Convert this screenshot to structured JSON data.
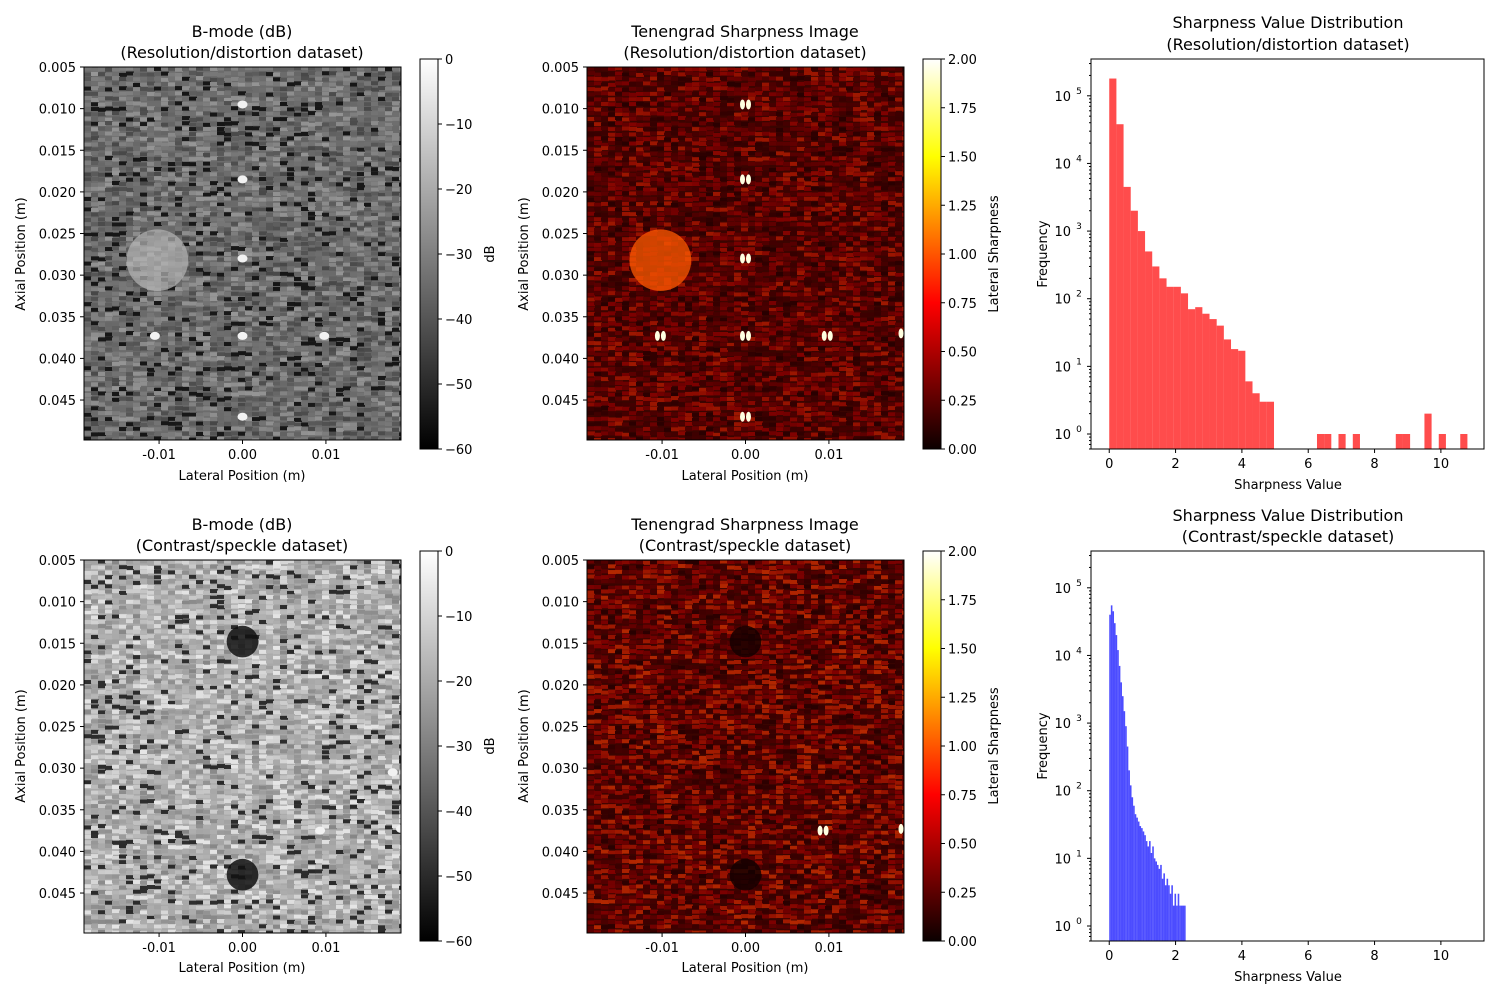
{
  "chart_data": [
    {
      "type": "heatmap",
      "title": "B-mode (dB)",
      "subtitle": "(Resolution/distortion dataset)",
      "xlabel": "Lateral Position (m)",
      "ylabel": "Axial Position (m)",
      "xlim": [
        -0.019,
        0.019
      ],
      "ylim": [
        0.005,
        0.0498
      ],
      "xticks": [
        "-0.01",
        "0.00",
        "0.01"
      ],
      "yticks": [
        "0.005",
        "0.010",
        "0.015",
        "0.020",
        "0.025",
        "0.030",
        "0.035",
        "0.040",
        "0.045"
      ],
      "colormap": "gray",
      "colorbar": {
        "label": "dB",
        "range": [
          -60,
          0
        ],
        "ticks": [
          "0",
          "−10",
          "−20",
          "−30",
          "−40",
          "−50",
          "−60"
        ]
      },
      "point_targets": [
        [
          0.0,
          0.0095
        ],
        [
          0.0,
          0.0185
        ],
        [
          0.0,
          0.028
        ],
        [
          -0.0105,
          0.0373
        ],
        [
          0.0,
          0.0373
        ],
        [
          0.0098,
          0.0373
        ],
        [
          0.0,
          0.047
        ]
      ],
      "inclusions": [
        {
          "x": -0.0102,
          "y": 0.0282,
          "r": 0.0037,
          "kind": "bright"
        }
      ]
    },
    {
      "type": "heatmap",
      "title": "Tenengrad Sharpness Image",
      "subtitle": "(Resolution/distortion dataset)",
      "xlabel": "Lateral Position (m)",
      "ylabel": "Axial Position (m)",
      "xlim": [
        -0.019,
        0.019
      ],
      "ylim": [
        0.005,
        0.0498
      ],
      "xticks": [
        "-0.01",
        "0.00",
        "0.01"
      ],
      "yticks": [
        "0.005",
        "0.010",
        "0.015",
        "0.020",
        "0.025",
        "0.030",
        "0.035",
        "0.040",
        "0.045"
      ],
      "colormap": "hot",
      "colorbar": {
        "label": "Lateral Sharpness",
        "range": [
          0,
          2
        ],
        "ticks": [
          "0.00",
          "0.25",
          "0.50",
          "0.75",
          "1.00",
          "1.25",
          "1.50",
          "1.75",
          "2.00"
        ]
      },
      "point_targets": [
        [
          0.0,
          0.0095
        ],
        [
          0.0,
          0.0185
        ],
        [
          0.0,
          0.028
        ],
        [
          -0.0102,
          0.0373
        ],
        [
          0.0,
          0.0373
        ],
        [
          0.0098,
          0.0373
        ],
        [
          0.0,
          0.047
        ],
        [
          0.019,
          0.037
        ]
      ],
      "inclusions": [
        {
          "x": -0.0102,
          "y": 0.0282,
          "r": 0.0037,
          "kind": "bright"
        }
      ]
    },
    {
      "type": "bar",
      "title": "Sharpness Value Distribution",
      "subtitle": "(Resolution/distortion dataset)",
      "xlabel": "Sharpness Value",
      "ylabel": "Frequency",
      "yscale": "log",
      "xlim": [
        -0.55,
        11.3
      ],
      "ylim": [
        0.6,
        350000
      ],
      "xticks": [
        0,
        2,
        4,
        6,
        8,
        10
      ],
      "color": "#ff0000",
      "bin_width": 0.216,
      "x": [
        0.0,
        0.216,
        0.432,
        0.648,
        0.864,
        1.08,
        1.296,
        1.512,
        1.728,
        1.944,
        2.16,
        2.376,
        2.592,
        2.808,
        3.024,
        3.24,
        3.456,
        3.672,
        3.888,
        4.104,
        4.32,
        4.536,
        4.752,
        6.264,
        6.48,
        6.912,
        7.344,
        8.64,
        8.856,
        9.504,
        9.936,
        10.584
      ],
      "values": [
        180000,
        38000,
        4500,
        2000,
        1000,
        500,
        300,
        200,
        150,
        150,
        120,
        70,
        75,
        60,
        50,
        40,
        25,
        18,
        17,
        6,
        4,
        3,
        3,
        1,
        1,
        1,
        1,
        1,
        1,
        2,
        1,
        1
      ]
    },
    {
      "type": "heatmap",
      "title": "B-mode (dB)",
      "subtitle": "(Contrast/speckle dataset)",
      "xlabel": "Lateral Position (m)",
      "ylabel": "Axial Position (m)",
      "xlim": [
        -0.019,
        0.019
      ],
      "ylim": [
        0.005,
        0.0498
      ],
      "xticks": [
        "-0.01",
        "0.00",
        "0.01"
      ],
      "yticks": [
        "0.005",
        "0.010",
        "0.015",
        "0.020",
        "0.025",
        "0.030",
        "0.035",
        "0.040",
        "0.045"
      ],
      "colormap": "gray",
      "colorbar": {
        "label": "dB",
        "range": [
          -60,
          0
        ],
        "ticks": [
          "0",
          "−10",
          "−20",
          "−30",
          "−40",
          "−50",
          "−60"
        ]
      },
      "point_targets": [
        [
          0.0093,
          0.0375
        ],
        [
          0.019,
          0.0373
        ],
        [
          0.018,
          0.0305
        ]
      ],
      "inclusions": [
        {
          "x": 0.0,
          "y": 0.0148,
          "r": 0.0019,
          "kind": "dark"
        },
        {
          "x": 0.0,
          "y": 0.0428,
          "r": 0.0019,
          "kind": "dark"
        }
      ]
    },
    {
      "type": "heatmap",
      "title": "Tenengrad Sharpness Image",
      "subtitle": "(Contrast/speckle dataset)",
      "xlabel": "Lateral Position (m)",
      "ylabel": "Axial Position (m)",
      "xlim": [
        -0.019,
        0.019
      ],
      "ylim": [
        0.005,
        0.0498
      ],
      "xticks": [
        "-0.01",
        "0.00",
        "0.01"
      ],
      "yticks": [
        "0.005",
        "0.010",
        "0.015",
        "0.020",
        "0.025",
        "0.030",
        "0.035",
        "0.040",
        "0.045"
      ],
      "colormap": "hot",
      "colorbar": {
        "label": "Lateral Sharpness",
        "range": [
          0,
          2
        ],
        "ticks": [
          "0.00",
          "0.25",
          "0.50",
          "0.75",
          "1.00",
          "1.25",
          "1.50",
          "1.75",
          "2.00"
        ]
      },
      "point_targets": [
        [
          0.0093,
          0.0375
        ],
        [
          0.019,
          0.0373
        ]
      ],
      "inclusions": [
        {
          "x": 0.0,
          "y": 0.0148,
          "r": 0.0019,
          "kind": "dark"
        },
        {
          "x": 0.0,
          "y": 0.0428,
          "r": 0.0019,
          "kind": "dark"
        }
      ]
    },
    {
      "type": "bar",
      "title": "Sharpness Value Distribution",
      "subtitle": "(Contrast/speckle dataset)",
      "xlabel": "Sharpness Value",
      "ylabel": "Frequency",
      "yscale": "log",
      "xlim": [
        -0.55,
        11.3
      ],
      "ylim": [
        0.6,
        350000
      ],
      "xticks": [
        0,
        2,
        4,
        6,
        8,
        10
      ],
      "color": "#0000ff",
      "bin_width": 0.048,
      "x": [
        0.0,
        0.048,
        0.096,
        0.144,
        0.192,
        0.24,
        0.288,
        0.336,
        0.384,
        0.432,
        0.48,
        0.528,
        0.576,
        0.624,
        0.672,
        0.72,
        0.768,
        0.816,
        0.864,
        0.912,
        0.96,
        1.008,
        1.056,
        1.104,
        1.152,
        1.2,
        1.248,
        1.296,
        1.344,
        1.392,
        1.44,
        1.488,
        1.536,
        1.584,
        1.632,
        1.68,
        1.728,
        1.776,
        1.824,
        1.872,
        1.92,
        1.968,
        2.016,
        2.064,
        2.112,
        2.16,
        2.208,
        2.256
      ],
      "values": [
        40000,
        55000,
        45000,
        30000,
        20000,
        12000,
        7000,
        4000,
        2500,
        1500,
        900,
        450,
        200,
        120,
        80,
        60,
        45,
        40,
        35,
        30,
        28,
        25,
        22,
        18,
        15,
        18,
        12,
        15,
        10,
        9,
        8,
        7,
        8,
        5,
        6,
        4,
        5,
        4,
        3,
        4,
        2,
        3,
        2,
        3,
        2,
        2,
        2,
        2
      ]
    }
  ]
}
